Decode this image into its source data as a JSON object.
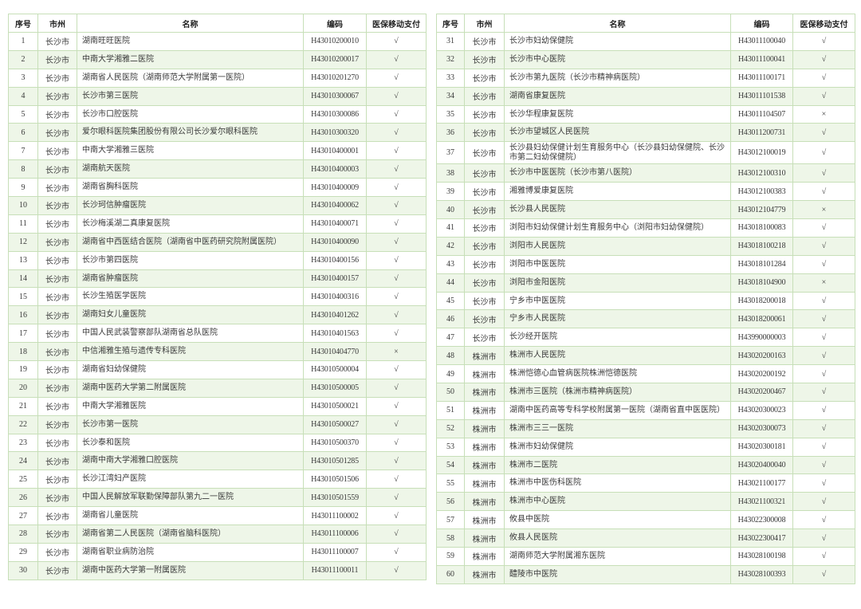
{
  "headers": [
    "序号",
    "市州",
    "名称",
    "编码",
    "医保移动支付"
  ],
  "colors": {
    "border": "#8ec07a",
    "stripe": "#eef6e8"
  },
  "tables": [
    {
      "rows": [
        [
          "1",
          "长沙市",
          "湖南旺旺医院",
          "H43010200010",
          "√"
        ],
        [
          "2",
          "长沙市",
          "中南大学湘雅二医院",
          "H43010200017",
          "√"
        ],
        [
          "3",
          "长沙市",
          "湖南省人民医院（湖南师范大学附属第一医院）",
          "H43010201270",
          "√"
        ],
        [
          "4",
          "长沙市",
          "长沙市第三医院",
          "H43010300067",
          "√"
        ],
        [
          "5",
          "长沙市",
          "长沙市口腔医院",
          "H43010300086",
          "√"
        ],
        [
          "6",
          "长沙市",
          "爱尔眼科医院集团股份有限公司长沙爱尔眼科医院",
          "H43010300320",
          "√"
        ],
        [
          "7",
          "长沙市",
          "中南大学湘雅三医院",
          "H43010400001",
          "√"
        ],
        [
          "8",
          "长沙市",
          "湖南航天医院",
          "H43010400003",
          "√"
        ],
        [
          "9",
          "长沙市",
          "湖南省胸科医院",
          "H43010400009",
          "√"
        ],
        [
          "10",
          "长沙市",
          "长沙珂信肿瘤医院",
          "H43010400062",
          "√"
        ],
        [
          "11",
          "长沙市",
          "长沙梅溪湖二真康复医院",
          "H43010400071",
          "√"
        ],
        [
          "12",
          "长沙市",
          "湖南省中西医结合医院（湖南省中医药研究院附属医院）",
          "H43010400090",
          "√"
        ],
        [
          "13",
          "长沙市",
          "长沙市第四医院",
          "H43010400156",
          "√"
        ],
        [
          "14",
          "长沙市",
          "湖南省肿瘤医院",
          "H43010400157",
          "√"
        ],
        [
          "15",
          "长沙市",
          "长沙生殖医学医院",
          "H43010400316",
          "√"
        ],
        [
          "16",
          "长沙市",
          "湖南妇女儿童医院",
          "H43010401262",
          "√"
        ],
        [
          "17",
          "长沙市",
          "中国人民武装警察部队湖南省总队医院",
          "H43010401563",
          "√"
        ],
        [
          "18",
          "长沙市",
          "中信湘雅生殖与遗传专科医院",
          "H43010404770",
          "×"
        ],
        [
          "19",
          "长沙市",
          "湖南省妇幼保健院",
          "H43010500004",
          "√"
        ],
        [
          "20",
          "长沙市",
          "湖南中医药大学第二附属医院",
          "H43010500005",
          "√"
        ],
        [
          "21",
          "长沙市",
          "中南大学湘雅医院",
          "H43010500021",
          "√"
        ],
        [
          "22",
          "长沙市",
          "长沙市第一医院",
          "H43010500027",
          "√"
        ],
        [
          "23",
          "长沙市",
          "长沙泰和医院",
          "H43010500370",
          "√"
        ],
        [
          "24",
          "长沙市",
          "湖南中南大学湘雅口腔医院",
          "H43010501285",
          "√"
        ],
        [
          "25",
          "长沙市",
          "长沙江湾妇产医院",
          "H43010501506",
          "√"
        ],
        [
          "26",
          "长沙市",
          "中国人民解放军联勤保障部队第九二一医院",
          "H43010501559",
          "√"
        ],
        [
          "27",
          "长沙市",
          "湖南省儿童医院",
          "H43011100002",
          "√"
        ],
        [
          "28",
          "长沙市",
          "湖南省第二人民医院（湖南省脑科医院）",
          "H43011100006",
          "√"
        ],
        [
          "29",
          "长沙市",
          "湖南省职业病防治院",
          "H43011100007",
          "√"
        ],
        [
          "30",
          "长沙市",
          "湖南中医药大学第一附属医院",
          "H43011100011",
          "√"
        ]
      ]
    },
    {
      "rows": [
        [
          "31",
          "长沙市",
          "长沙市妇幼保健院",
          "H43011100040",
          "√"
        ],
        [
          "32",
          "长沙市",
          "长沙市中心医院",
          "H43011100041",
          "√"
        ],
        [
          "33",
          "长沙市",
          "长沙市第九医院（长沙市精神病医院）",
          "H43011100171",
          "√"
        ],
        [
          "34",
          "长沙市",
          "湖南省康复医院",
          "H43011101538",
          "√"
        ],
        [
          "35",
          "长沙市",
          "长沙华程康复医院",
          "H43011104507",
          "×"
        ],
        [
          "36",
          "长沙市",
          "长沙市望城区人民医院",
          "H43011200731",
          "√"
        ],
        [
          "37",
          "长沙市",
          "长沙县妇幼保健计划生育服务中心（长沙县妇幼保健院、长沙市第二妇幼保健院）",
          "H43012100019",
          "√"
        ],
        [
          "38",
          "长沙市",
          "长沙市中医医院（长沙市第八医院）",
          "H43012100310",
          "√"
        ],
        [
          "39",
          "长沙市",
          "湘雅博爱康复医院",
          "H43012100383",
          "√"
        ],
        [
          "40",
          "长沙市",
          "长沙县人民医院",
          "H43012104779",
          "×"
        ],
        [
          "41",
          "长沙市",
          "浏阳市妇幼保健计划生育服务中心（浏阳市妇幼保健院）",
          "H43018100083",
          "√"
        ],
        [
          "42",
          "长沙市",
          "浏阳市人民医院",
          "H43018100218",
          "√"
        ],
        [
          "43",
          "长沙市",
          "浏阳市中医医院",
          "H43018101284",
          "√"
        ],
        [
          "44",
          "长沙市",
          "浏阳市金阳医院",
          "H43018104900",
          "×"
        ],
        [
          "45",
          "长沙市",
          "宁乡市中医医院",
          "H43018200018",
          "√"
        ],
        [
          "46",
          "长沙市",
          "宁乡市人民医院",
          "H43018200061",
          "√"
        ],
        [
          "47",
          "长沙市",
          "长沙经开医院",
          "H43990000003",
          "√"
        ],
        [
          "48",
          "株洲市",
          "株洲市人民医院",
          "H43020200163",
          "√"
        ],
        [
          "49",
          "株洲市",
          "株洲恺德心血管病医院株洲恺德医院",
          "H43020200192",
          "√"
        ],
        [
          "50",
          "株洲市",
          "株洲市三医院（株洲市精神病医院）",
          "H43020200467",
          "√"
        ],
        [
          "51",
          "株洲市",
          "湖南中医药高等专科学校附属第一医院（湖南省直中医医院）",
          "H43020300023",
          "√"
        ],
        [
          "52",
          "株洲市",
          "株洲市三三一医院",
          "H43020300073",
          "√"
        ],
        [
          "53",
          "株洲市",
          "株洲市妇幼保健院",
          "H43020300181",
          "√"
        ],
        [
          "54",
          "株洲市",
          "株洲市二医院",
          "H43020400040",
          "√"
        ],
        [
          "55",
          "株洲市",
          "株洲市中医伤科医院",
          "H43021100177",
          "√"
        ],
        [
          "56",
          "株洲市",
          "株洲市中心医院",
          "H43021100321",
          "√"
        ],
        [
          "57",
          "株洲市",
          "攸县中医院",
          "H43022300008",
          "√"
        ],
        [
          "58",
          "株洲市",
          "攸县人民医院",
          "H43022300417",
          "√"
        ],
        [
          "59",
          "株洲市",
          "湖南师范大学附属湘东医院",
          "H43028100198",
          "√"
        ],
        [
          "60",
          "株洲市",
          "醴陵市中医院",
          "H43028100393",
          "√"
        ]
      ]
    }
  ]
}
